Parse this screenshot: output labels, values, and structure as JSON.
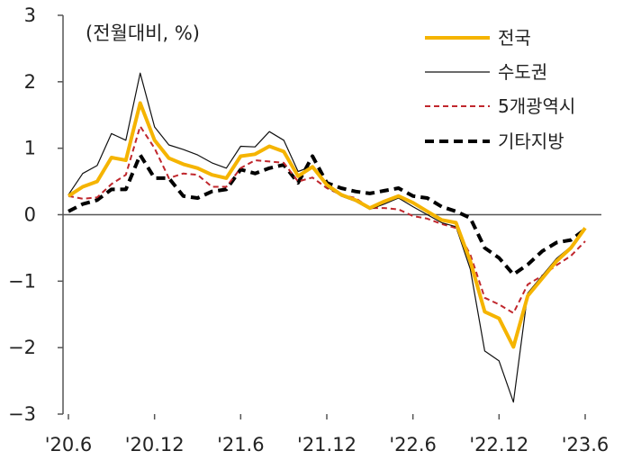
{
  "chart_data": {
    "type": "line",
    "unit_label": "(전월대비, %)",
    "ylim": [
      -3,
      3
    ],
    "yticks": [
      3,
      2,
      1,
      0,
      -1,
      -2,
      -3
    ],
    "ytick_labels": [
      "3",
      "2",
      "1",
      "0",
      "−1",
      "−2",
      "−3"
    ],
    "xtick_labels": [
      "'20.6",
      "'20.12",
      "'21.6",
      "'21.12",
      "'22.6",
      "'22.12",
      "'23.6"
    ],
    "grid": false,
    "legend_position": "top-right",
    "x": [
      "'20.6",
      "'20.7",
      "'20.8",
      "'20.9",
      "'20.10",
      "'20.11",
      "'20.12",
      "'21.1",
      "'21.2",
      "'21.3",
      "'21.4",
      "'21.5",
      "'21.6",
      "'21.7",
      "'21.8",
      "'21.9",
      "'21.10",
      "'21.11",
      "'21.12",
      "'22.1",
      "'22.2",
      "'22.3",
      "'22.4",
      "'22.5",
      "'22.6",
      "'22.7",
      "'22.8",
      "'22.9",
      "'22.10",
      "'22.11",
      "'22.12",
      "'23.1",
      "'23.2",
      "'23.3",
      "'23.4",
      "'23.5",
      "'23.6"
    ],
    "series": [
      {
        "name": "전국",
        "color": "#f5b400",
        "style": "solid-thick",
        "values": [
          0.28,
          0.42,
          0.5,
          0.86,
          0.82,
          1.68,
          1.12,
          0.85,
          0.76,
          0.7,
          0.6,
          0.55,
          0.88,
          0.91,
          1.03,
          0.95,
          0.58,
          0.72,
          0.45,
          0.3,
          0.22,
          0.1,
          0.2,
          0.28,
          0.18,
          0.05,
          -0.08,
          -0.12,
          -0.7,
          -1.46,
          -1.56,
          -1.99,
          -1.22,
          -0.96,
          -0.7,
          -0.5,
          -0.2
        ]
      },
      {
        "name": "수도권",
        "color": "#111111",
        "style": "solid-thin",
        "values": [
          0.3,
          0.62,
          0.74,
          1.22,
          1.12,
          2.13,
          1.32,
          1.05,
          0.98,
          0.9,
          0.78,
          0.7,
          1.03,
          1.02,
          1.25,
          1.12,
          0.65,
          0.73,
          0.42,
          0.28,
          0.2,
          0.08,
          0.16,
          0.25,
          0.12,
          0.0,
          -0.12,
          -0.18,
          -0.82,
          -2.05,
          -2.2,
          -2.82,
          -1.18,
          -0.92,
          -0.66,
          -0.48,
          -0.22
        ]
      },
      {
        "name": "5개광역시",
        "color": "#c0272d",
        "style": "dashed-thin",
        "values": [
          0.28,
          0.24,
          0.26,
          0.46,
          0.6,
          1.33,
          1.0,
          0.55,
          0.62,
          0.6,
          0.42,
          0.42,
          0.7,
          0.82,
          0.8,
          0.78,
          0.5,
          0.56,
          0.4,
          0.3,
          0.25,
          0.1,
          0.1,
          0.08,
          -0.02,
          -0.06,
          -0.14,
          -0.2,
          -0.6,
          -1.25,
          -1.35,
          -1.48,
          -1.05,
          -0.92,
          -0.76,
          -0.62,
          -0.4
        ]
      },
      {
        "name": "기타지방",
        "color": "#000000",
        "style": "dashed-thick",
        "values": [
          0.05,
          0.16,
          0.22,
          0.38,
          0.38,
          0.9,
          0.55,
          0.55,
          0.28,
          0.25,
          0.35,
          0.38,
          0.68,
          0.62,
          0.7,
          0.75,
          0.48,
          0.88,
          0.48,
          0.4,
          0.35,
          0.32,
          0.36,
          0.4,
          0.28,
          0.25,
          0.12,
          0.05,
          -0.05,
          -0.5,
          -0.65,
          -0.9,
          -0.75,
          -0.55,
          -0.42,
          -0.38,
          -0.22
        ]
      }
    ]
  }
}
